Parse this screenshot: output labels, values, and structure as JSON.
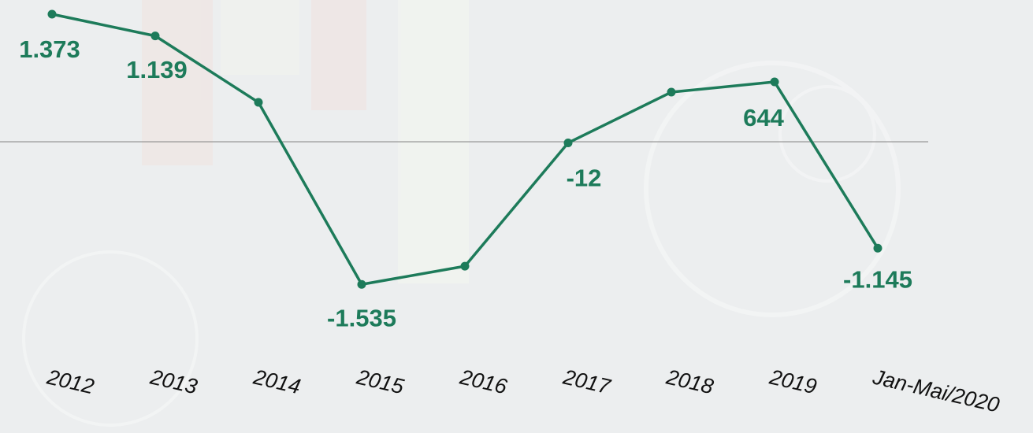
{
  "chart_data": {
    "type": "line",
    "categories": [
      "2012",
      "2013",
      "2014",
      "2015",
      "2016",
      "2017",
      "2018",
      "2019",
      "Jan-Mai/2020"
    ],
    "series": [
      {
        "color": "#1d7b5a",
        "values": [
          1373,
          1139,
          424,
          -1535,
          -1339,
          -12,
          534,
          644,
          -1145
        ],
        "value_labels": [
          "1.373",
          "1.139",
          null,
          "-1.535",
          null,
          "-12",
          null,
          "644",
          "-1.145"
        ]
      }
    ],
    "ylim": [
      -3100,
      1500
    ]
  }
}
